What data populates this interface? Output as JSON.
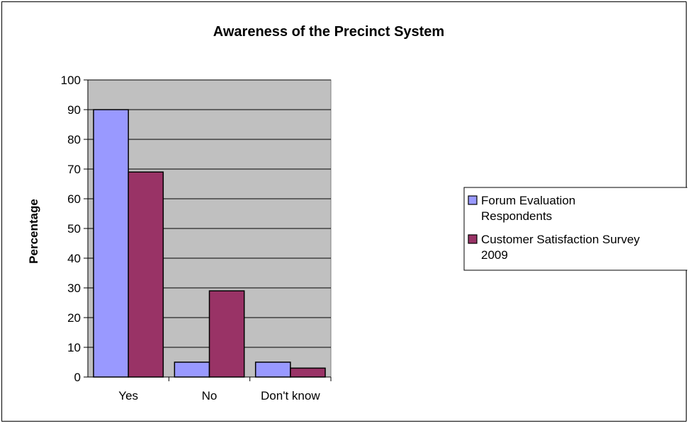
{
  "chart_data": {
    "type": "bar",
    "title": "Awareness of the Precinct System",
    "xlabel": "",
    "ylabel": "Percentage",
    "categories": [
      "Yes",
      "No",
      "Don't know"
    ],
    "series": [
      {
        "name": "Forum Evaluation Respondents",
        "name_lines": [
          "Forum Evaluation",
          "Respondents"
        ],
        "color": "#9999ff",
        "values": [
          90,
          5,
          5
        ]
      },
      {
        "name": "Customer Satisfaction Survey 2009",
        "name_lines": [
          "Customer Satisfaction Survey",
          "2009"
        ],
        "color": "#993366",
        "values": [
          69,
          29,
          3
        ]
      }
    ],
    "ylim": [
      0,
      100
    ],
    "yticks": [
      "0",
      "10",
      "20",
      "30",
      "40",
      "50",
      "60",
      "70",
      "80",
      "90",
      "100"
    ],
    "grid": true,
    "plot_background": "#c0c0c0",
    "legend_position": "right"
  }
}
